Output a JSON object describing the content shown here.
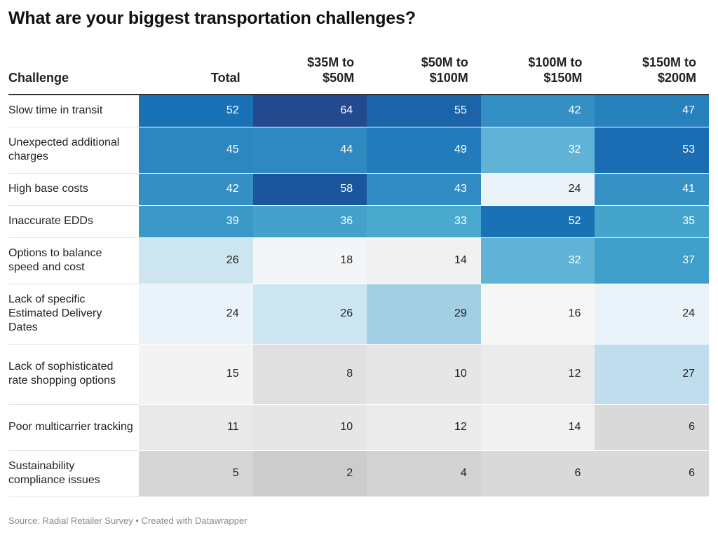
{
  "title": "What are your biggest transportation challenges?",
  "source": "Source: Radial Retailer Survey • Created with Datawrapper",
  "chart_data": {
    "type": "table",
    "title": "What are your biggest transportation challenges?",
    "columns": [
      "Challenge",
      "Total",
      "$35M to $50M",
      "$50M to $100M",
      "$100M to $150M",
      "$150M to $200M"
    ],
    "header_lines": [
      [
        "Challenge"
      ],
      [
        "Total"
      ],
      [
        "$35M to",
        "$50M"
      ],
      [
        "$50M to",
        "$100M"
      ],
      [
        "$100M to",
        "$150M"
      ],
      [
        "$150M to",
        "$200M"
      ]
    ],
    "rows": [
      {
        "label": "Slow time in transit",
        "values": [
          52,
          64,
          55,
          42,
          47
        ]
      },
      {
        "label": "Unexpected additional charges",
        "values": [
          45,
          44,
          49,
          32,
          53
        ]
      },
      {
        "label": "High base costs",
        "values": [
          42,
          58,
          43,
          24,
          41
        ]
      },
      {
        "label": "Inaccurate EDDs",
        "values": [
          39,
          36,
          33,
          52,
          35
        ]
      },
      {
        "label": "Options to balance speed and cost",
        "values": [
          26,
          18,
          14,
          32,
          37
        ]
      },
      {
        "label": "Lack of specific Estimated Delivery Dates",
        "values": [
          24,
          26,
          29,
          16,
          24
        ]
      },
      {
        "label": "Lack of sophisticated rate shopping options",
        "values": [
          15,
          8,
          10,
          12,
          27
        ]
      },
      {
        "label": "Poor multicarrier tracking",
        "values": [
          11,
          10,
          12,
          14,
          6
        ]
      },
      {
        "label": "Sustainability compliance issues",
        "values": [
          5,
          2,
          4,
          6,
          6
        ]
      }
    ],
    "color_scale": {
      "stops": [
        {
          "value": 2,
          "color": "#cccccc"
        },
        {
          "value": 10,
          "color": "#e6e6e6"
        },
        {
          "value": 16,
          "color": "#f6f6f6"
        },
        {
          "value": 24,
          "color": "#eaf2fa"
        },
        {
          "value": 29,
          "color": "#a2cfe4"
        },
        {
          "value": 33,
          "color": "#4aaace"
        },
        {
          "value": 42,
          "color": "#348fc4"
        },
        {
          "value": 52,
          "color": "#1a72b6"
        },
        {
          "value": 58,
          "color": "#1b559d"
        },
        {
          "value": 64,
          "color": "#234a8e"
        }
      ],
      "light_text": "#ffffff",
      "dark_text": "#222222"
    }
  }
}
